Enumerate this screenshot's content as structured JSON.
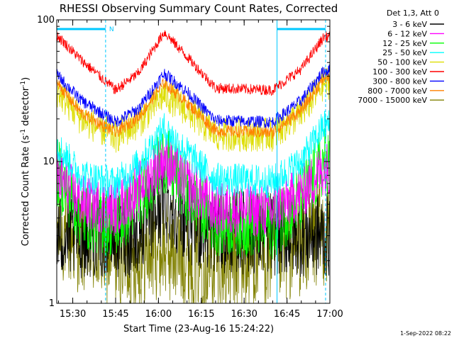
{
  "chart_data": {
    "type": "line",
    "title": "RHESSI Observing Summary Count Rates, Corrected",
    "xlabel": "Start Time (23-Aug-16 15:24:22)",
    "ylabel": "Corrected Count Rate (s⁻¹ detector⁻¹)",
    "ylabel_main": "Corrected Count Rate (s",
    "ylabel_mid": " detector",
    "ylabel_end": ")",
    "ylabel_sup": "-1",
    "yscale": "log",
    "ylim": [
      1,
      100
    ],
    "xlim_min": [
      924.4,
      1020
    ],
    "x_ticks": [
      {
        "t": 930,
        "label": "15:30"
      },
      {
        "t": 945,
        "label": "15:45"
      },
      {
        "t": 960,
        "label": "16:00"
      },
      {
        "t": 975,
        "label": "16:15"
      },
      {
        "t": 990,
        "label": "16:30"
      },
      {
        "t": 1005,
        "label": "16:45"
      },
      {
        "t": 1020,
        "label": "17:00"
      }
    ],
    "y_ticks": [
      {
        "v": 1,
        "label": "1"
      },
      {
        "v": 10,
        "label": "10"
      },
      {
        "v": 100,
        "label": "100"
      }
    ],
    "legend_header": "Det 1,3, Att 0",
    "legend_position": "right",
    "night_markers": [
      941.5,
      1001.5,
      1018.5
    ],
    "night_bars": [
      [
        924.4,
        941.5
      ],
      [
        1001.5,
        1018.5
      ]
    ],
    "saa_label": "N",
    "footer_date": "1-Sep-2022 08:22",
    "series": [
      {
        "name": "3 - 6 keV",
        "color": "#000000",
        "keypoints": [
          [
            924.4,
            3.0
          ],
          [
            940,
            3.0
          ],
          [
            952,
            3.0
          ],
          [
            958,
            4.2
          ],
          [
            962,
            5.2
          ],
          [
            967,
            4.4
          ],
          [
            975,
            3.3
          ],
          [
            1018,
            3.0
          ]
        ],
        "scatter": 0.55
      },
      {
        "name": "6 - 12 keV",
        "color": "#ff00ff",
        "keypoints": [
          [
            924.4,
            8.0
          ],
          [
            933,
            5.2
          ],
          [
            945,
            4.6
          ],
          [
            953,
            6.5
          ],
          [
            962,
            10.5
          ],
          [
            970,
            7.0
          ],
          [
            980,
            4.6
          ],
          [
            1000,
            4.5
          ],
          [
            1010,
            6.0
          ],
          [
            1018,
            9.0
          ]
        ],
        "scatter": 0.35
      },
      {
        "name": "12 - 25 keV",
        "color": "#00ff00",
        "keypoints": [
          [
            924.4,
            8.5
          ],
          [
            933,
            4.2
          ],
          [
            945,
            3.6
          ],
          [
            953,
            5.5
          ],
          [
            962,
            10.5
          ],
          [
            970,
            6.2
          ],
          [
            980,
            3.8
          ],
          [
            1000,
            3.6
          ],
          [
            1010,
            5.5
          ],
          [
            1018,
            10.0
          ]
        ],
        "scatter": 0.45
      },
      {
        "name": "25 - 50 keV",
        "color": "#00ffff",
        "keypoints": [
          [
            924.4,
            13.0
          ],
          [
            933,
            8.0
          ],
          [
            945,
            7.0
          ],
          [
            953,
            9.5
          ],
          [
            962,
            17.0
          ],
          [
            970,
            11.5
          ],
          [
            980,
            7.5
          ],
          [
            1000,
            7.2
          ],
          [
            1010,
            10.0
          ],
          [
            1018,
            18.0
          ]
        ],
        "scatter": 0.22
      },
      {
        "name": "50 - 100 keV",
        "color": "#dddd00",
        "keypoints": [
          [
            924.4,
            32.0
          ],
          [
            933,
            20.0
          ],
          [
            945,
            15.0
          ],
          [
            953,
            19.0
          ],
          [
            962,
            30.0
          ],
          [
            970,
            23.0
          ],
          [
            980,
            15.5
          ],
          [
            1000,
            15.5
          ],
          [
            1010,
            22.0
          ],
          [
            1018,
            36.0
          ]
        ],
        "scatter": 0.22
      },
      {
        "name": "100 - 300 keV",
        "color": "#ff0000",
        "keypoints": [
          [
            924.4,
            78.0
          ],
          [
            933,
            52.0
          ],
          [
            945,
            32.0
          ],
          [
            953,
            42.0
          ],
          [
            962,
            82.0
          ],
          [
            970,
            55.0
          ],
          [
            980,
            33.0
          ],
          [
            1000,
            32.0
          ],
          [
            1010,
            45.0
          ],
          [
            1018,
            76.0
          ]
        ],
        "scatter": 0.07
      },
      {
        "name": "300 - 800 keV",
        "color": "#0000ff",
        "keypoints": [
          [
            924.4,
            41.0
          ],
          [
            933,
            27.0
          ],
          [
            945,
            19.0
          ],
          [
            953,
            23.5
          ],
          [
            962,
            42.0
          ],
          [
            970,
            31.0
          ],
          [
            980,
            19.5
          ],
          [
            1000,
            19.0
          ],
          [
            1010,
            27.0
          ],
          [
            1018,
            44.0
          ]
        ],
        "scatter": 0.08
      },
      {
        "name": "800 - 7000 keV",
        "color": "#ff8000",
        "keypoints": [
          [
            924.4,
            36.0
          ],
          [
            933,
            22.0
          ],
          [
            945,
            16.0
          ],
          [
            953,
            20.5
          ],
          [
            962,
            36.0
          ],
          [
            970,
            26.0
          ],
          [
            980,
            16.5
          ],
          [
            1000,
            16.0
          ],
          [
            1010,
            23.0
          ],
          [
            1018,
            39.0
          ]
        ],
        "scatter": 0.08
      },
      {
        "name": "7000 - 15000 keV",
        "color": "#808000",
        "keypoints": [
          [
            924.4,
            3.4
          ],
          [
            940,
            2.4
          ],
          [
            952,
            2.0
          ],
          [
            960,
            2.6
          ],
          [
            970,
            2.2
          ],
          [
            985,
            1.9
          ],
          [
            1000,
            2.2
          ],
          [
            1018,
            3.2
          ]
        ],
        "scatter": 0.7
      }
    ]
  }
}
